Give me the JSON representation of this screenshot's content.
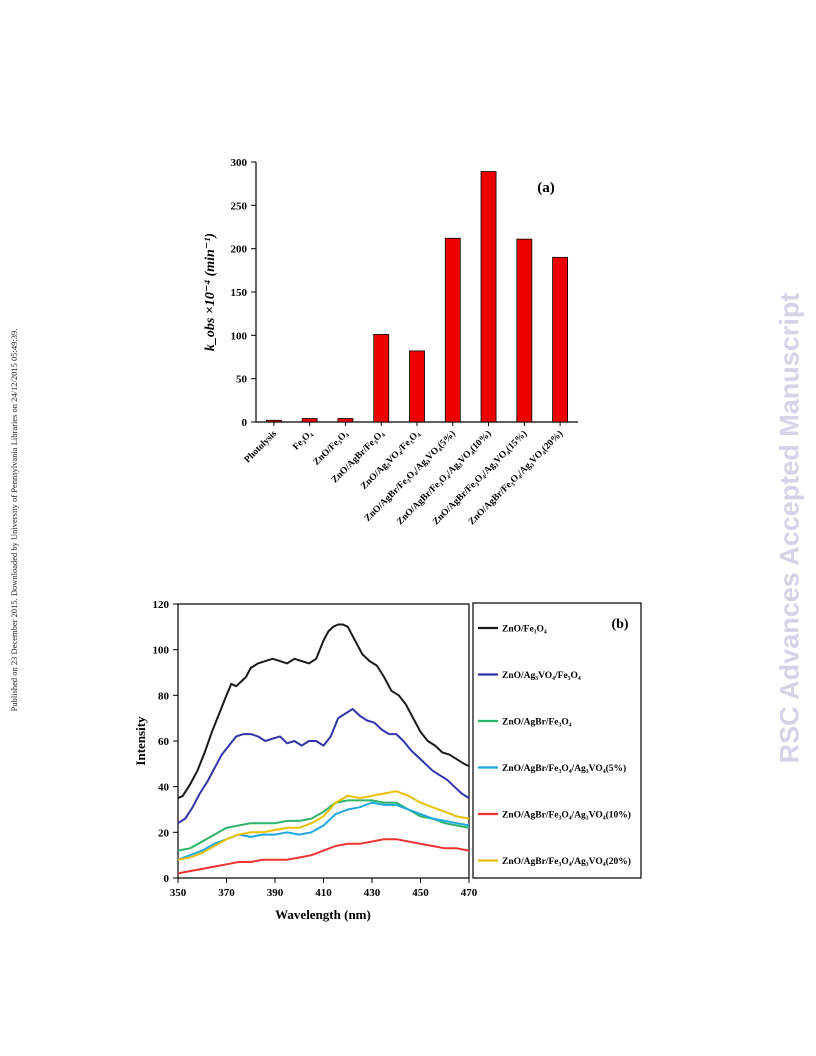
{
  "side_note": "Published on 23 December 2015. Downloaded by University of Pennsylvania Libraries on 24/12/2015 05:49:39.",
  "watermark": "RSC Advances Accepted Manuscript",
  "chart_data": [
    {
      "type": "bar",
      "panel_label": "(a)",
      "ylabel": "k_obs ×10⁻⁴ (min⁻¹)",
      "ylim": [
        0,
        300
      ],
      "yticks": [
        0,
        50,
        100,
        150,
        200,
        250,
        300
      ],
      "categories": [
        "Photolysis",
        "Fe₃O₄",
        "ZnO/Fe₃O₄",
        "ZnO/AgBr/Fe₃O₄",
        "ZnO/Ag₃VO₄/Fe₃O₄",
        "ZnO/AgBr/Fe₃O₄/Ag₃VO₄(5%)",
        "ZnO/AgBr/Fe₃O₄/Ag₃VO₄(10%)",
        "ZnO/AgBr/Fe₃O₄/Ag₃VO₄(15%)",
        "ZnO/AgBr/Fe₃O₄/Ag₃VO₄(20%)"
      ],
      "values": [
        2,
        4,
        4,
        101,
        82,
        212,
        289,
        211,
        190
      ],
      "bar_color": "#ee0000",
      "grid": false
    },
    {
      "type": "line",
      "panel_label": "(b)",
      "xlabel": "Wavelength (nm)",
      "ylabel": "Intensity",
      "xlim": [
        350,
        470
      ],
      "ylim": [
        0,
        120
      ],
      "xticks": [
        350,
        370,
        390,
        410,
        430,
        450,
        470
      ],
      "yticks": [
        0,
        20,
        40,
        60,
        80,
        100,
        120
      ],
      "legend_position": "right",
      "grid": false,
      "series": [
        {
          "name": "ZnO/Fe₃O₄",
          "color": "#1a1a1a",
          "x": [
            350,
            352,
            355,
            358,
            361,
            364,
            367,
            370,
            372,
            374,
            376,
            378,
            380,
            383,
            386,
            389,
            392,
            395,
            398,
            401,
            404,
            407,
            410,
            412,
            414,
            416,
            418,
            420,
            423,
            426,
            429,
            432,
            435,
            438,
            441,
            444,
            447,
            450,
            453,
            456,
            459,
            462,
            465,
            468,
            470
          ],
          "y": [
            35,
            36,
            41,
            47,
            55,
            64,
            72,
            80,
            85,
            84,
            86,
            88,
            92,
            94,
            95,
            96,
            95,
            94,
            96,
            95,
            94,
            96,
            104,
            108,
            110,
            111,
            111,
            110,
            104,
            98,
            95,
            93,
            88,
            82,
            80,
            76,
            70,
            64,
            60,
            58,
            55,
            54,
            52,
            50,
            49
          ]
        },
        {
          "name": "ZnO/Ag₃VO₄/Fe₃O₄",
          "color": "#3333aa",
          "x": [
            350,
            353,
            356,
            359,
            362,
            365,
            368,
            371,
            374,
            377,
            380,
            383,
            386,
            389,
            392,
            395,
            398,
            401,
            404,
            407,
            410,
            413,
            416,
            419,
            422,
            425,
            428,
            431,
            434,
            437,
            440,
            443,
            446,
            449,
            452,
            455,
            458,
            461,
            464,
            467,
            470
          ],
          "y": [
            24,
            26,
            31,
            37,
            42,
            48,
            54,
            58,
            62,
            63,
            63,
            62,
            60,
            61,
            62,
            59,
            60,
            58,
            60,
            60,
            58,
            62,
            70,
            72,
            74,
            71,
            69,
            68,
            65,
            63,
            63,
            60,
            56,
            53,
            50,
            47,
            45,
            43,
            40,
            37,
            35
          ]
        },
        {
          "name": "ZnO/AgBr/Fe₃O₄",
          "color": "#2db36a",
          "x": [
            350,
            355,
            360,
            365,
            370,
            375,
            380,
            385,
            390,
            395,
            400,
            405,
            410,
            415,
            420,
            425,
            430,
            435,
            440,
            445,
            450,
            455,
            460,
            465,
            470
          ],
          "y": [
            12,
            13,
            16,
            19,
            22,
            23,
            24,
            24,
            24,
            25,
            25,
            26,
            29,
            33,
            34,
            34,
            34,
            33,
            33,
            30,
            27,
            26,
            24,
            23,
            22
          ]
        },
        {
          "name": "ZnO/AgBr/Fe₃O₄/Ag₃VO₄(5%)",
          "color": "#1fa8e0",
          "x": [
            350,
            355,
            360,
            365,
            370,
            375,
            380,
            385,
            390,
            395,
            400,
            405,
            410,
            415,
            420,
            425,
            430,
            435,
            440,
            445,
            450,
            455,
            460,
            465,
            470
          ],
          "y": [
            8,
            10,
            12,
            15,
            17,
            19,
            18,
            19,
            19,
            20,
            19,
            20,
            23,
            28,
            30,
            31,
            33,
            32,
            32,
            30,
            28,
            26,
            25,
            24,
            23
          ]
        },
        {
          "name": "ZnO/AgBr/Fe₃O₄/Ag₃VO₄(10%)",
          "color": "#ee3333",
          "x": [
            350,
            355,
            360,
            365,
            370,
            375,
            380,
            385,
            390,
            395,
            400,
            405,
            410,
            415,
            420,
            425,
            430,
            435,
            440,
            445,
            450,
            455,
            460,
            465,
            470
          ],
          "y": [
            2,
            3,
            4,
            5,
            6,
            7,
            7,
            8,
            8,
            8,
            9,
            10,
            12,
            14,
            15,
            15,
            16,
            17,
            17,
            16,
            15,
            14,
            13,
            13,
            12
          ]
        },
        {
          "name": "ZnO/AgBr/Fe₃O₄/Ag₃VO₄(20%)",
          "color": "#e8c000",
          "x": [
            350,
            355,
            360,
            365,
            370,
            375,
            380,
            385,
            390,
            395,
            400,
            405,
            410,
            415,
            420,
            425,
            430,
            435,
            440,
            445,
            450,
            455,
            460,
            465,
            470
          ],
          "y": [
            8,
            9,
            11,
            14,
            17,
            19,
            20,
            20,
            21,
            22,
            22,
            24,
            27,
            33,
            36,
            35,
            36,
            37,
            38,
            36,
            33,
            31,
            29,
            27,
            26
          ]
        }
      ]
    }
  ]
}
